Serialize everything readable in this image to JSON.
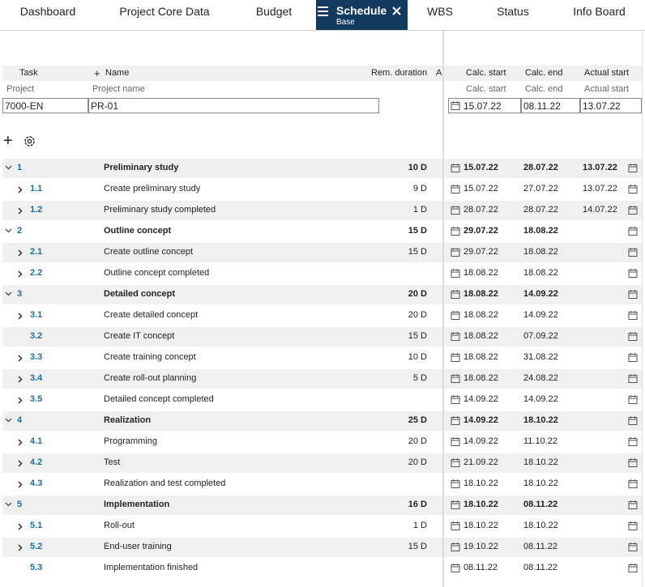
{
  "tabs": [
    {
      "label": "Dashboard"
    },
    {
      "label": "Project Core Data"
    },
    {
      "label": "Budget"
    },
    {
      "label": "Schedule",
      "sublabel": "Base",
      "active": true
    },
    {
      "label": "WBS"
    },
    {
      "label": "Status"
    },
    {
      "label": "Info Board"
    }
  ],
  "table": {
    "header": {
      "task": "Task",
      "name": "Name",
      "duration": "Rem. duration",
      "extra": "A",
      "calc_start": "Calc. start",
      "calc_end": "Calc. end",
      "actual_start": "Actual start"
    },
    "subheader": {
      "task": "Project",
      "name": "Project name",
      "calc_start": "Calc. start",
      "calc_end": "Calc. end",
      "actual_start": "Actual start"
    },
    "filter": {
      "task": "7000-EN",
      "name": "PR-01",
      "calc_start": "15.07.22",
      "calc_end": "08.11.22",
      "actual_start": "13.07.22"
    },
    "rows": [
      {
        "id": "1",
        "name": "Preliminary study",
        "duration": "10 D",
        "calc_start": "15.07.22",
        "calc_end": "28.07.22",
        "actual_start": "13.07.22",
        "summary": true
      },
      {
        "id": "1.1",
        "name": "Create preliminary study",
        "duration": "9 D",
        "calc_start": "15.07.22",
        "calc_end": "27.07.22",
        "actual_start": "13.07.22",
        "expandable": true
      },
      {
        "id": "1.2",
        "name": "Preliminary study completed",
        "duration": "1 D",
        "calc_start": "28.07.22",
        "calc_end": "28.07.22",
        "actual_start": "14.07.22",
        "expandable": true
      },
      {
        "id": "2",
        "name": "Outline concept",
        "duration": "15 D",
        "calc_start": "29.07.22",
        "calc_end": "18.08.22",
        "summary": true
      },
      {
        "id": "2.1",
        "name": "Create outline concept",
        "duration": "15 D",
        "calc_start": "29.07.22",
        "calc_end": "18.08.22",
        "expandable": true
      },
      {
        "id": "2.2",
        "name": "Outline concept completed",
        "calc_start": "18.08.22",
        "calc_end": "18.08.22",
        "expandable": true
      },
      {
        "id": "3",
        "name": "Detailed concept",
        "duration": "20 D",
        "calc_start": "18.08.22",
        "calc_end": "14.09.22",
        "summary": true
      },
      {
        "id": "3.1",
        "name": "Create detailed concept",
        "duration": "20 D",
        "calc_start": "18.08.22",
        "calc_end": "14.09.22",
        "expandable": true
      },
      {
        "id": "3.2",
        "name": "Create IT concept",
        "duration": "15 D",
        "calc_start": "18.08.22",
        "calc_end": "07.09.22"
      },
      {
        "id": "3.3",
        "name": "Create training concept",
        "duration": "10 D",
        "calc_start": "18.08.22",
        "calc_end": "31.08.22",
        "expandable": true
      },
      {
        "id": "3.4",
        "name": "Create roll-out planning",
        "duration": "5 D",
        "calc_start": "18.08.22",
        "calc_end": "24.08.22",
        "expandable": true
      },
      {
        "id": "3.5",
        "name": "Detailed concept completed",
        "calc_start": "14.09.22",
        "calc_end": "14.09.22",
        "expandable": true
      },
      {
        "id": "4",
        "name": "Realization",
        "duration": "25 D",
        "calc_start": "14.09.22",
        "calc_end": "18.10.22",
        "summary": true
      },
      {
        "id": "4.1",
        "name": "Programming",
        "duration": "20 D",
        "calc_start": "14.09.22",
        "calc_end": "11.10.22",
        "expandable": true
      },
      {
        "id": "4.2",
        "name": "Test",
        "duration": "20 D",
        "calc_start": "21.09.22",
        "calc_end": "18.10.22",
        "expandable": true
      },
      {
        "id": "4.3",
        "name": "Realization and test completed",
        "calc_start": "18.10.22",
        "calc_end": "18.10.22",
        "expandable": true
      },
      {
        "id": "5",
        "name": "Implementation",
        "duration": "16 D",
        "calc_start": "18.10.22",
        "calc_end": "08.11.22",
        "summary": true
      },
      {
        "id": "5.1",
        "name": "Roll-out",
        "duration": "1 D",
        "calc_start": "18.10.22",
        "calc_end": "18.10.22",
        "expandable": true
      },
      {
        "id": "5.2",
        "name": "End-user training",
        "duration": "15 D",
        "calc_start": "19.10.22",
        "calc_end": "08.11.22",
        "expandable": true
      },
      {
        "id": "5.3",
        "name": "Implementation finished",
        "calc_start": "08.11.22",
        "calc_end": "08.11.22"
      }
    ]
  }
}
